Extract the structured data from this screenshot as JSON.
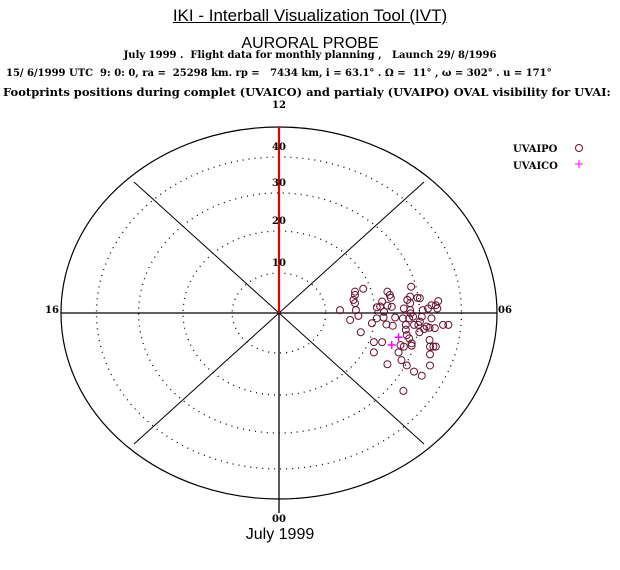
{
  "header": {
    "title": "IKI - Interball Visualization Tool (IVT)",
    "subtitle": "AURORAL PROBE",
    "line1": "July 1999 .  Flight data for monthly planning ,   Launch 29/ 8/1996",
    "line2": "15/ 6/1999 UTC  9: 0: 0, ra =  25298 km. rp =   7434 km, i = 63.1° . Ω =  11° , ω = 302° . u = 171°",
    "line3": "Footprints positions during complet (UVAICO) and partialy (UVAIPO) OVAL visibility for UVAI:"
  },
  "footer": "July 1999",
  "colors": {
    "uvaipo": "#6b1030",
    "uvaico": "#ff00ff",
    "meridian": "#e00000"
  },
  "chart_data": {
    "type": "scatter",
    "projection": "polar",
    "direction_labels": {
      "top": "12",
      "bottom": "00",
      "left": "16",
      "right": "06"
    },
    "ring_labels": [
      "10",
      "20",
      "30",
      "40"
    ],
    "ring_values": [
      10,
      20,
      30,
      40
    ],
    "outer_value": 50,
    "units": "degrees from pole (x toward 06, y toward 12)",
    "legend": [
      {
        "name": "UVAIPO",
        "marker": "o"
      },
      {
        "name": "UVAICO",
        "marker": "+"
      }
    ],
    "legend_position": "top-right",
    "series": [
      {
        "name": "UVAIPO",
        "points": [
          [
            12.6,
            0.7
          ],
          [
            15.7,
            5.2
          ],
          [
            15.7,
            4.4
          ],
          [
            17.4,
            5.9
          ],
          [
            15.4,
            3.2
          ],
          [
            15.7,
            2.4
          ],
          [
            15.9,
            0.7
          ],
          [
            14.7,
            -1.7
          ],
          [
            16.4,
            -0.7
          ],
          [
            16.9,
            -4.7
          ],
          [
            19.2,
            -2.5
          ],
          [
            20.2,
            -1.3
          ],
          [
            20.2,
            1.4
          ],
          [
            20.9,
            1.6
          ],
          [
            21.3,
            2.8
          ],
          [
            22.4,
            5.2
          ],
          [
            22.9,
            4.4
          ],
          [
            23.1,
            3.7
          ],
          [
            27.3,
            6.4
          ],
          [
            27.1,
            4.0
          ],
          [
            28.6,
            3.7
          ],
          [
            29.1,
            3.6
          ],
          [
            26.5,
            3.2
          ],
          [
            25.8,
            1.1
          ],
          [
            27.1,
            2.4
          ],
          [
            27.1,
            0.7
          ],
          [
            27.2,
            -0.1
          ],
          [
            26.9,
            -1.3
          ],
          [
            27.7,
            -0.9
          ],
          [
            29.5,
            -0.9
          ],
          [
            29.7,
            0.7
          ],
          [
            30.8,
            1.1
          ],
          [
            31.5,
            1.9
          ],
          [
            32.4,
            1.9
          ],
          [
            32.9,
            2.9
          ],
          [
            32.7,
            1.1
          ],
          [
            31.5,
            -1.3
          ],
          [
            30.5,
            -3.3
          ],
          [
            29.1,
            -2.1
          ],
          [
            28.8,
            -2.9
          ],
          [
            27.9,
            -2.9
          ],
          [
            26.2,
            -2.9
          ],
          [
            26.2,
            -4.1
          ],
          [
            26.4,
            -5.4
          ],
          [
            26.9,
            -6.2
          ],
          [
            27.4,
            -7.4
          ],
          [
            27.4,
            -8.0
          ],
          [
            29.0,
            -4.7
          ],
          [
            30.0,
            -3.9
          ],
          [
            31.1,
            -3.6
          ],
          [
            32.2,
            -3.7
          ],
          [
            33.9,
            -2.9
          ],
          [
            35.0,
            -2.9
          ],
          [
            31.1,
            -6.6
          ],
          [
            31.2,
            -8.2
          ],
          [
            31.9,
            -8.2
          ],
          [
            32.4,
            -8.2
          ],
          [
            31.2,
            -10.1
          ],
          [
            31.2,
            -12.8
          ],
          [
            25.8,
            -8.2
          ],
          [
            25.1,
            -7.8
          ],
          [
            24.7,
            -9.6
          ],
          [
            25.3,
            -11.5
          ],
          [
            26.4,
            -12.8
          ],
          [
            27.9,
            -14.3
          ],
          [
            29.5,
            -15.3
          ],
          [
            25.7,
            -19.0
          ],
          [
            22.4,
            -12.5
          ],
          [
            19.6,
            -7.1
          ],
          [
            21.3,
            -7.1
          ],
          [
            19.6,
            -9.6
          ],
          [
            21.6,
            -1.1
          ],
          [
            22.2,
            -2.8
          ],
          [
            23.5,
            -3.1
          ],
          [
            24.0,
            -1.1
          ],
          [
            25.6,
            -1.3
          ],
          [
            23.3,
            1.5
          ],
          [
            22.4,
            1.8
          ],
          [
            21.7,
            0.3
          ]
        ]
      },
      {
        "name": "UVAICO",
        "points": [
          [
            24.7,
            -5.9
          ],
          [
            23.3,
            -7.8
          ]
        ]
      }
    ]
  }
}
